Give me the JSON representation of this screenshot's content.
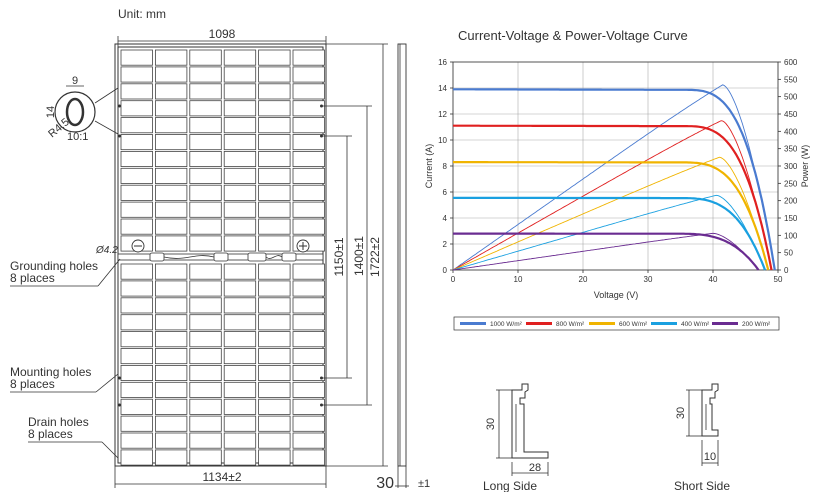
{
  "drawing": {
    "unit_label": "Unit: mm",
    "dims": {
      "top_width": "1098",
      "bottom_width": "1134±2",
      "height_mid": "1150±1",
      "height_inner": "1400±1",
      "height_total": "1722±2",
      "frame_depth": "30",
      "frame_tol": "±1"
    },
    "detail": {
      "w": "9",
      "h": "14",
      "radius": "R4.5",
      "scale": "10:1"
    },
    "hole_diameter": "Ø4.2",
    "polarity": {
      "neg": "⊖",
      "pos": "⊕"
    },
    "callouts": [
      {
        "line1": "Grounding holes",
        "line2": "8 places"
      },
      {
        "line1": "Mounting holes",
        "line2": "8 places"
      },
      {
        "line1": "Drain holes",
        "line2": "8 places"
      }
    ],
    "profiles": {
      "long": {
        "label": "Long Side",
        "height": "30",
        "width": "28"
      },
      "short": {
        "label": "Short Side",
        "height": "30",
        "width": "10"
      }
    }
  },
  "chart_data": {
    "type": "line",
    "title": "Current-Voltage & Power-Voltage Curve",
    "xlabel": "Voltage (V)",
    "ylabel": "Current (A)",
    "y2label": "Power (W)",
    "xlim": [
      0,
      50
    ],
    "ylim": [
      0,
      16
    ],
    "y2lim": [
      0,
      600
    ],
    "xticks": [
      "0",
      "10",
      "20",
      "30",
      "40",
      "50"
    ],
    "yticks": [
      "0",
      "2",
      "4",
      "6",
      "8",
      "10",
      "12",
      "14",
      "16"
    ],
    "y2ticks": [
      "0",
      "50",
      "100",
      "150",
      "200",
      "250",
      "300",
      "350",
      "400",
      "450",
      "500",
      "550",
      "600"
    ],
    "grid": true,
    "legend_position": "bottom",
    "series": [
      {
        "name": "1000 W/m²",
        "color": "#4a7bd0",
        "isc": 13.9,
        "voc": 49.5,
        "pmax": 545,
        "vmp": 41.5
      },
      {
        "name": "800 W/m²",
        "color": "#e02020",
        "isc": 11.1,
        "voc": 49.0,
        "pmax": 440,
        "vmp": 41.3
      },
      {
        "name": "600 W/m²",
        "color": "#f0b400",
        "isc": 8.3,
        "voc": 48.5,
        "pmax": 332,
        "vmp": 41.0
      },
      {
        "name": "400 W/m²",
        "color": "#1aa0e0",
        "isc": 5.55,
        "voc": 48.0,
        "pmax": 220,
        "vmp": 40.5
      },
      {
        "name": "200 W/m²",
        "color": "#6a2c91",
        "isc": 2.8,
        "voc": 47.0,
        "pmax": 108,
        "vmp": 40.0
      }
    ]
  }
}
